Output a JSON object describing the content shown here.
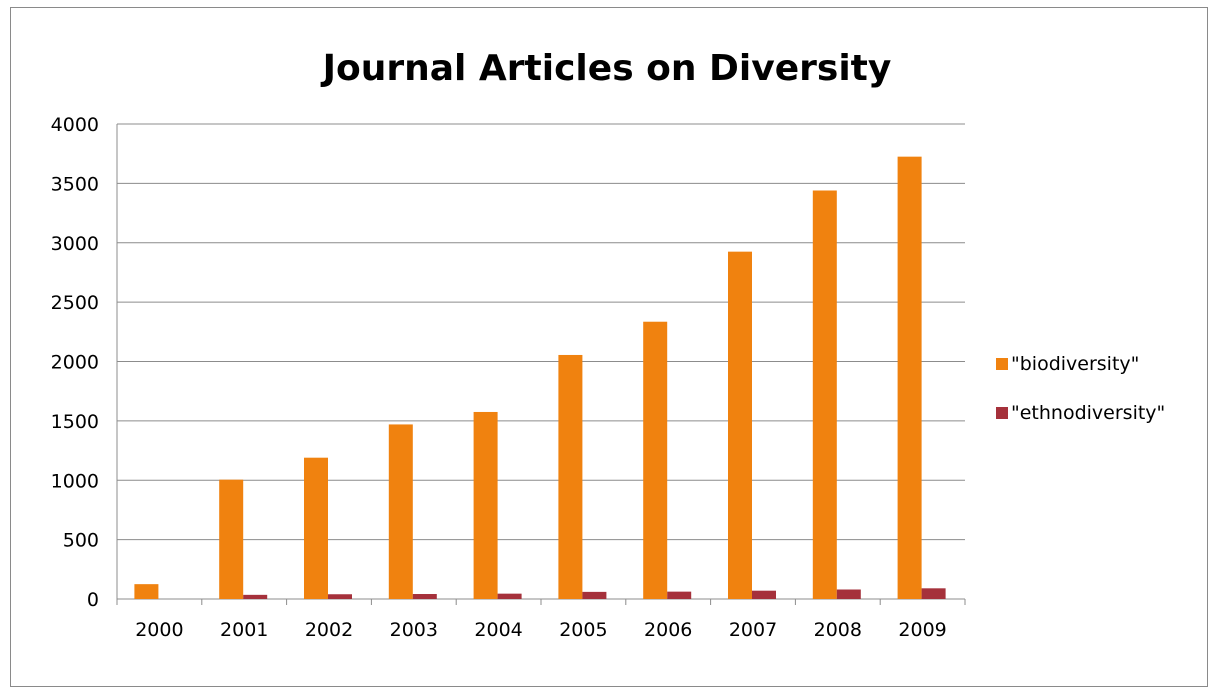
{
  "chart_data": {
    "type": "bar",
    "title": "Journal Articles on Diversity",
    "xlabel": "",
    "ylabel": "",
    "categories": [
      "2000",
      "2001",
      "2002",
      "2003",
      "2004",
      "2005",
      "2006",
      "2007",
      "2008",
      "2009"
    ],
    "series": [
      {
        "name": "\"biodiversity\"",
        "color": "#F0820F",
        "values": [
          125,
          1005,
          1190,
          1470,
          1575,
          2055,
          2335,
          2925,
          3440,
          3725
        ]
      },
      {
        "name": "\"ethnodiversity\"",
        "color": "#A5313B",
        "values": [
          0,
          35,
          40,
          42,
          45,
          60,
          62,
          70,
          80,
          90
        ]
      }
    ],
    "ylim": [
      0,
      4000
    ],
    "yticks": [
      0,
      500,
      1000,
      1500,
      2000,
      2500,
      3000,
      3500,
      4000
    ],
    "grid": true,
    "legend_position": "right"
  }
}
